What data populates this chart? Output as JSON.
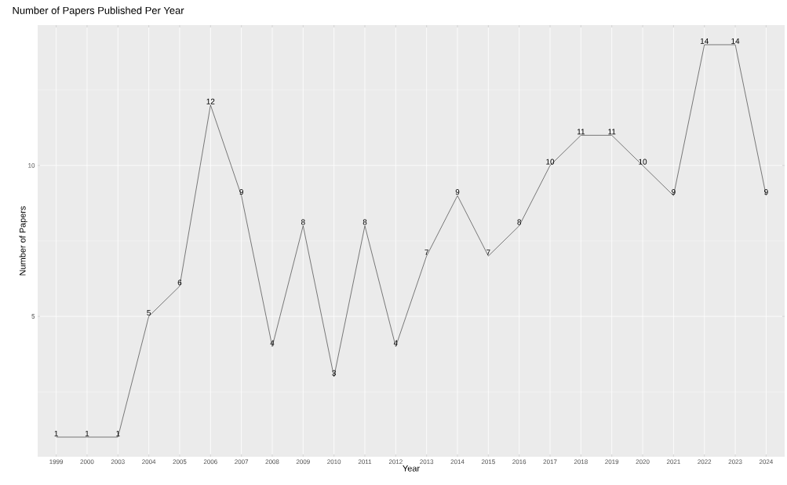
{
  "chart_data": {
    "type": "line",
    "title": "Number of Papers Published Per Year",
    "xlabel": "Year",
    "ylabel": "Number of Papers",
    "categories": [
      "1999",
      "2000",
      "2003",
      "2004",
      "2005",
      "2006",
      "2007",
      "2008",
      "2009",
      "2010",
      "2011",
      "2012",
      "2013",
      "2014",
      "2015",
      "2016",
      "2017",
      "2018",
      "2019",
      "2020",
      "2021",
      "2022",
      "2023",
      "2024"
    ],
    "values": [
      1,
      1,
      1,
      5,
      6,
      12,
      9,
      4,
      8,
      3,
      8,
      4,
      7,
      9,
      7,
      8,
      10,
      11,
      11,
      10,
      9,
      14,
      14,
      9
    ],
    "color": "#000000",
    "ylim": [
      0.35,
      14.65
    ],
    "yticks": [
      5,
      10
    ],
    "grid": true,
    "data_labels": true,
    "marker": "none"
  }
}
